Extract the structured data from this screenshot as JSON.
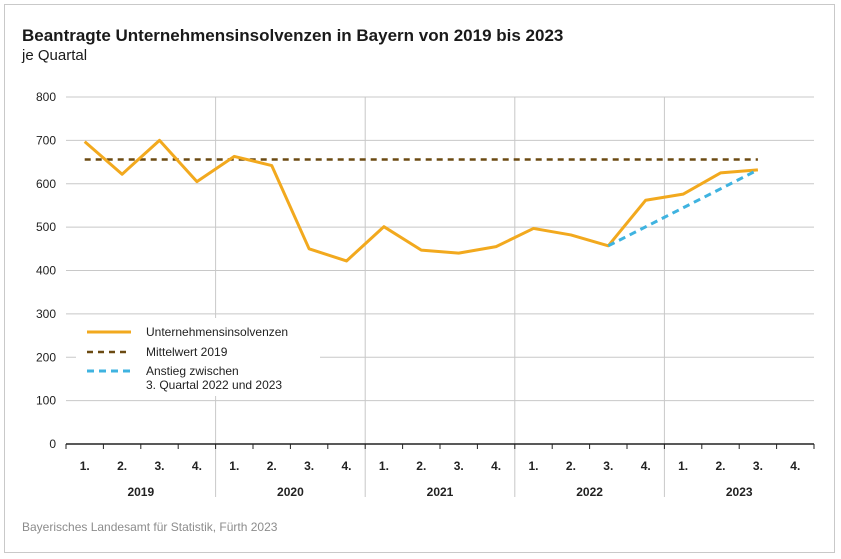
{
  "title": "Beantragte Unternehmensinsolvenzen in Bayern von 2019 bis 2023",
  "subtitle": "je Quartal",
  "source": "Bayerisches Landesamt für Statistik, Fürth 2023",
  "chart_data": {
    "type": "line",
    "title": "Beantragte Unternehmensinsolvenzen in Bayern von 2019 bis 2023",
    "subtitle": "je Quartal",
    "quarter_labels": [
      "1.",
      "2.",
      "3.",
      "4."
    ],
    "years": [
      "2019",
      "2020",
      "2021",
      "2022",
      "2023"
    ],
    "categories": [
      "2019 Q1",
      "2019 Q2",
      "2019 Q3",
      "2019 Q4",
      "2020 Q1",
      "2020 Q2",
      "2020 Q3",
      "2020 Q4",
      "2021 Q1",
      "2021 Q2",
      "2021 Q3",
      "2021 Q4",
      "2022 Q1",
      "2022 Q2",
      "2022 Q3",
      "2022 Q4",
      "2023 Q1",
      "2023 Q2",
      "2023 Q3",
      "2023 Q4"
    ],
    "ylim": [
      0,
      800
    ],
    "yticks": [
      0,
      100,
      200,
      300,
      400,
      500,
      600,
      700,
      800
    ],
    "grid": true,
    "legend_position": "bottom-left",
    "series": [
      {
        "name": "Unternehmensinsolvenzen",
        "style": "solid",
        "color": "#f2a91e",
        "values": [
          697,
          622,
          700,
          605,
          663,
          642,
          450,
          422,
          501,
          447,
          440,
          455,
          497,
          482,
          457,
          562,
          576,
          625,
          632,
          null
        ]
      },
      {
        "name": "Mittelwert 2019",
        "style": "dashed",
        "color": "#6b4a12",
        "values": [
          656,
          656,
          656,
          656,
          656,
          656,
          656,
          656,
          656,
          656,
          656,
          656,
          656,
          656,
          656,
          656,
          656,
          656,
          656,
          null
        ]
      },
      {
        "name": "Anstieg zwischen\n3. Quartal 2022 und 2023",
        "name_lines": [
          "Anstieg zwischen",
          "3. Quartal 2022 und 2023"
        ],
        "style": "dashed",
        "color": "#3fb3e0",
        "values": [
          null,
          null,
          null,
          null,
          null,
          null,
          null,
          null,
          null,
          null,
          null,
          null,
          null,
          null,
          457,
          null,
          null,
          null,
          632,
          null
        ]
      }
    ]
  }
}
